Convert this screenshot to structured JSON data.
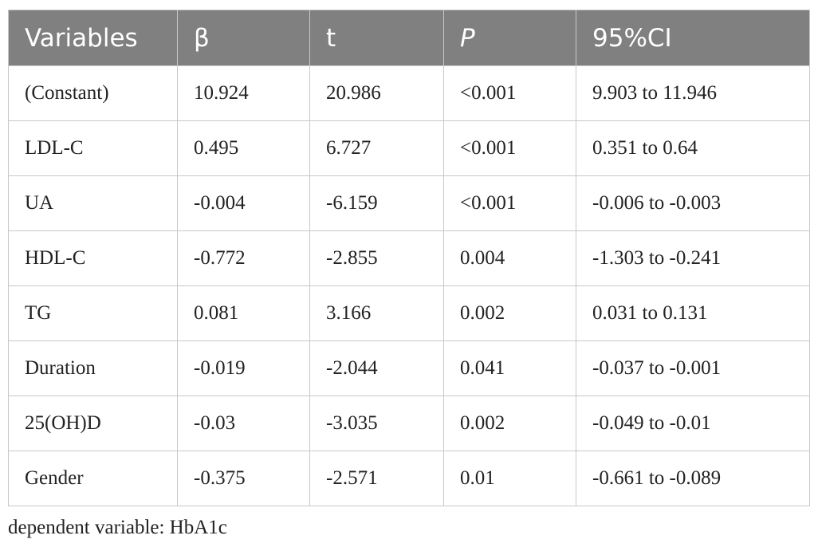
{
  "table": {
    "headers": [
      "Variables",
      "β",
      "t",
      "P",
      "95%CI"
    ],
    "rows": [
      [
        "(Constant)",
        "10.924",
        "20.986",
        "<0.001",
        "9.903 to 11.946"
      ],
      [
        "LDL-C",
        "0.495",
        "6.727",
        "<0.001",
        "0.351 to 0.64"
      ],
      [
        "UA",
        "-0.004",
        "-6.159",
        "<0.001",
        "-0.006 to -0.003"
      ],
      [
        "HDL-C",
        "-0.772",
        "-2.855",
        "0.004",
        "-1.303 to -0.241"
      ],
      [
        "TG",
        "0.081",
        "3.166",
        "0.002",
        "0.031 to 0.131"
      ],
      [
        "Duration",
        "-0.019",
        "-2.044",
        "0.041",
        "-0.037 to -0.001"
      ],
      [
        "25(OH)D",
        "-0.03",
        "-3.035",
        "0.002",
        "-0.049 to -0.01"
      ],
      [
        "Gender",
        "-0.375",
        "-2.571",
        "0.01",
        "-0.661 to -0.089"
      ]
    ]
  },
  "footnote": "dependent variable: HbA1c",
  "colors": {
    "header_bg": "#808080",
    "header_text": "#ffffff",
    "grid": "#c8c8c8",
    "body_text": "#222222"
  }
}
